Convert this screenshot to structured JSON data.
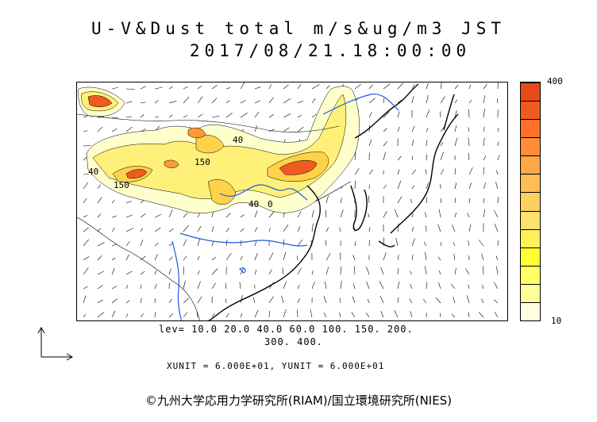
{
  "title": {
    "line1": "U-V&Dust total m/s&ug/m3 JST",
    "line2": "2017/08/21.18:00:00"
  },
  "colorbar": {
    "max_label": "400",
    "min_label": "10",
    "colors": [
      "#ffffe0",
      "#ffff99",
      "#ffff66",
      "#ffff33",
      "#fff05a",
      "#ffe26e",
      "#ffd060",
      "#ffbe55",
      "#ffa648",
      "#ff8c3a",
      "#ff702a",
      "#f05a20",
      "#e64a1a"
    ]
  },
  "levels": {
    "line1": "lev= 10.0 20.0 40.0 60.0 100. 150. 200.",
    "line2": "300. 400."
  },
  "units": "XUNIT = 6.000E+01, YUNIT = 6.000E+01",
  "credit": "©九州大学応用力学研究所(RIAM)/国立環境研究所(NIES)",
  "contour_labels": [
    "40",
    "150",
    "40",
    "150",
    "40",
    "0"
  ],
  "map": {
    "region": "East Asia",
    "coast_color": "#000000",
    "river_color": "#1e5adc",
    "dust_colors": [
      "#ffffcc",
      "#fff07a",
      "#ffd24a",
      "#ff9a30",
      "#f05a20"
    ]
  }
}
